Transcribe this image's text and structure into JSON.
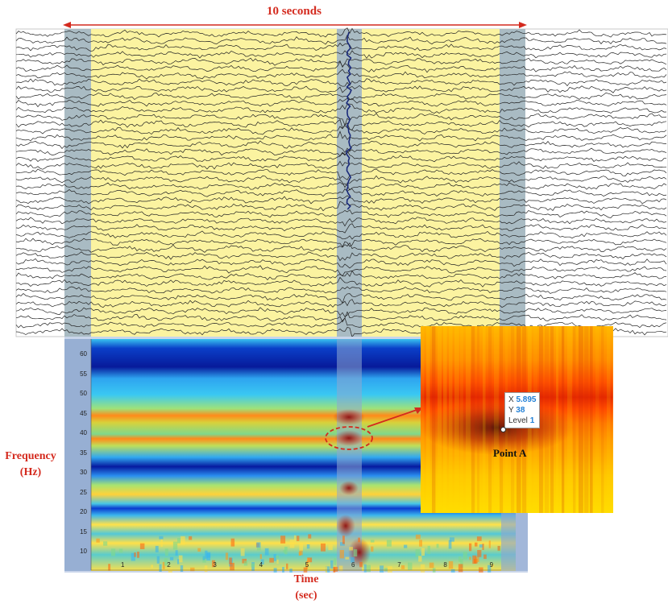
{
  "header": {
    "duration_label": "10 seconds"
  },
  "spectrogram": {
    "y_axis": {
      "title_line1": "Frequency",
      "title_line2": "(Hz)",
      "ticks": [
        "60",
        "55",
        "50",
        "45",
        "40",
        "35",
        "30",
        "25",
        "20",
        "15",
        "10"
      ]
    },
    "x_axis": {
      "title_line1": "Time",
      "title_line2": "(sec)",
      "ticks": [
        "1",
        "2",
        "3",
        "4",
        "5",
        "6",
        "7",
        "8",
        "9"
      ]
    }
  },
  "zoom_panel": {
    "datatip": {
      "x_label": "X",
      "x_value": "5.895",
      "y_label": "Y",
      "y_value": "38",
      "level_label": "Level",
      "level_value": "1"
    },
    "point_label": "Point A"
  },
  "colors": {
    "annotation_red": "#d42a1e",
    "highlight_yellow": "#fbf3a0",
    "highlight_blue": "#8ea8cf",
    "datatip_value": "#1f7fd6"
  }
}
